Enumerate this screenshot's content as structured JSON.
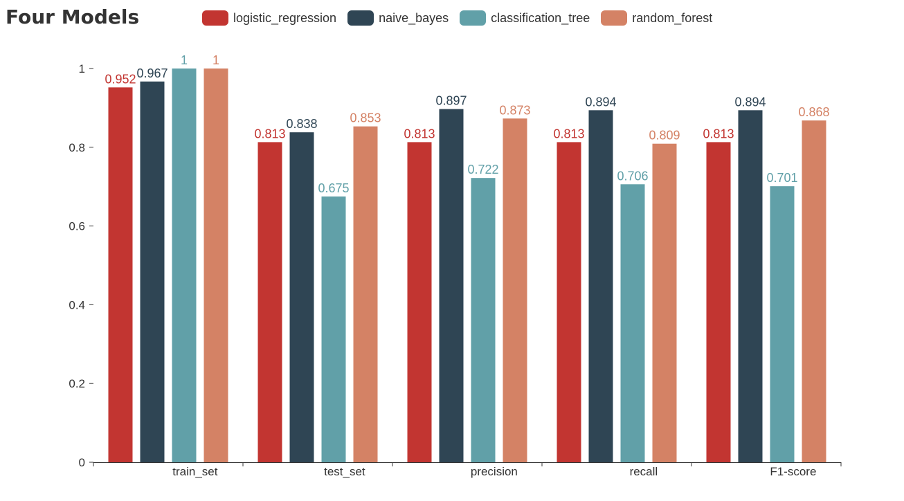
{
  "chart_data": {
    "type": "bar",
    "title": "Four Models",
    "categories": [
      "train_set",
      "test_set",
      "precision",
      "recall",
      "F1-score"
    ],
    "series": [
      {
        "name": "logistic_regression",
        "color": "#c23531",
        "values": [
          0.952,
          0.813,
          0.813,
          0.813,
          0.813
        ],
        "labels": [
          "0.952",
          "0.813",
          "0.813",
          "0.813",
          "0.813"
        ]
      },
      {
        "name": "naive_bayes",
        "color": "#2f4554",
        "values": [
          0.967,
          0.838,
          0.897,
          0.894,
          0.894
        ],
        "labels": [
          "0.967",
          "0.838",
          "0.897",
          "0.894",
          "0.894"
        ]
      },
      {
        "name": "classification_tree",
        "color": "#61a0a8",
        "values": [
          1,
          0.675,
          0.722,
          0.706,
          0.701
        ],
        "labels": [
          "1",
          "0.675",
          "0.722",
          "0.706",
          "0.701"
        ]
      },
      {
        "name": "random_forest",
        "color": "#d48265",
        "values": [
          1,
          0.853,
          0.873,
          0.809,
          0.868
        ],
        "labels": [
          "1",
          "0.853",
          "0.873",
          "0.809",
          "0.868"
        ]
      }
    ],
    "y_ticks": [
      "0",
      "0.2",
      "0.4",
      "0.6",
      "0.8",
      "1"
    ],
    "ylim": [
      0,
      1
    ],
    "legend_position": "top",
    "grid": false
  }
}
